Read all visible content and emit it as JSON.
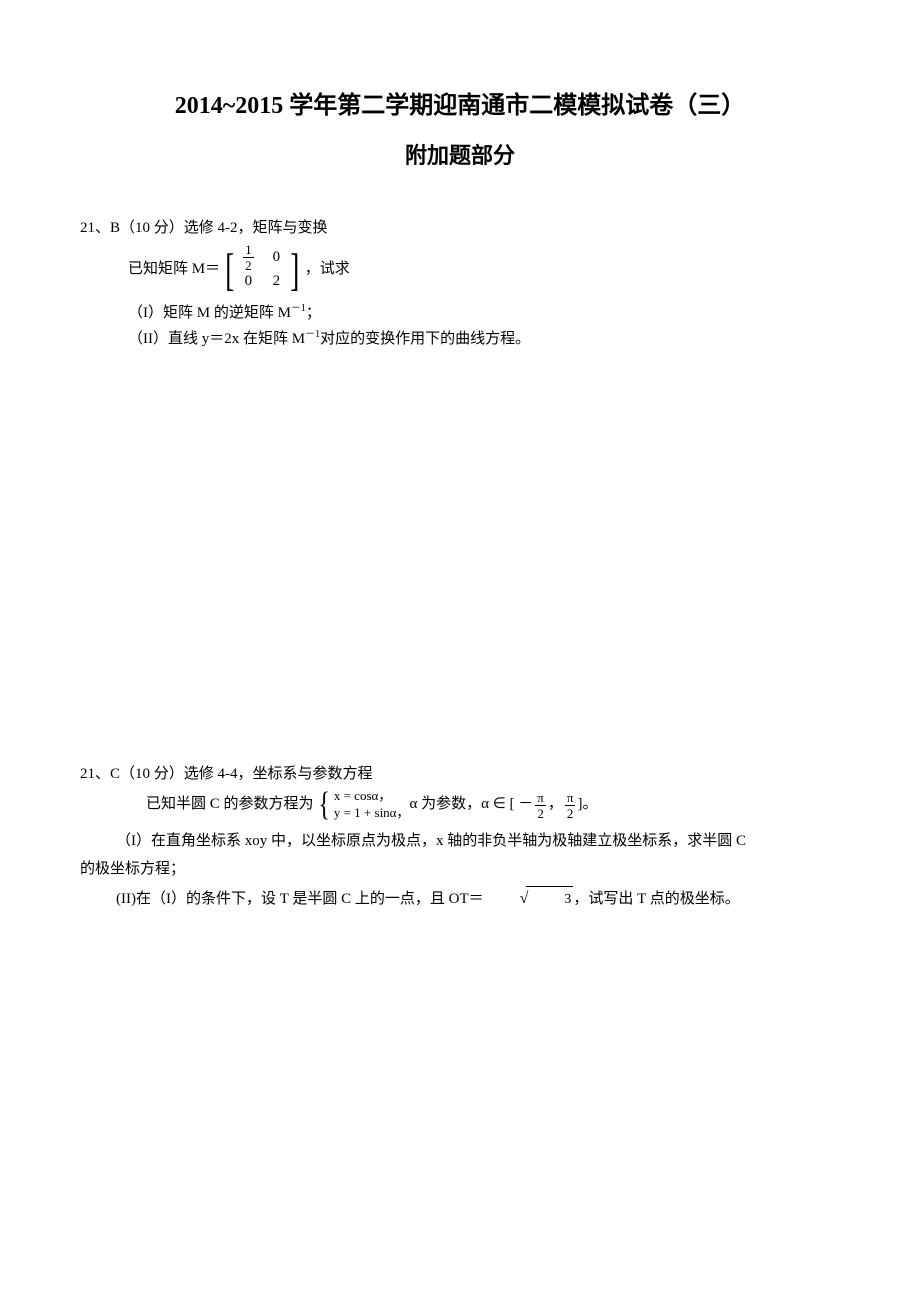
{
  "title": "2014~2015 学年第二学期迎南通市二模模拟试卷（三）",
  "subtitle": "附加题部分",
  "q1": {
    "head": "21、B（10 分）选修 4-2，矩阵与变换",
    "given_pre": "已知矩阵 M＝",
    "given_post": "，试求",
    "matrix": {
      "r1c1_num": "1",
      "r1c1_den": "2",
      "r1c2": "0",
      "r2c1": "0",
      "r2c2": "2"
    },
    "p1_pre": "（I）矩阵 M 的逆矩阵 M",
    "p1_sup": "－1",
    "p1_post": "；",
    "p2_pre": "（II）直线 y＝2x 在矩阵 M",
    "p2_sup": "－1",
    "p2_post": "对应的变换作用下的曲线方程。"
  },
  "q2": {
    "head": "21、C（10 分）选修 4-4，坐标系与参数方程",
    "line_pre": "已知半圆 C 的参数方程为",
    "case1": "x = cosα，",
    "case2": "y = 1 + sinα，",
    "line_mid": "α 为参数，α ∈ [ －",
    "frac1_num": "π",
    "frac1_den": "2",
    "comma": "，",
    "frac2_num": "π",
    "frac2_den": "2",
    "line_post": " ]。",
    "p1": "（I）在直角坐标系 xoy 中，以坐标原点为极点，x 轴的非负半轴为极轴建立极坐标系，求半圆 C",
    "p1b": "的极坐标方程；",
    "p2_pre": "(II)在（I）的条件下，设 T 是半圆 C 上的一点，且 OT＝",
    "sqrt_val": "3",
    "p2_post": "，试写出 T 点的极坐标。"
  },
  "colors": {
    "text": "#000000",
    "background": "#ffffff"
  }
}
